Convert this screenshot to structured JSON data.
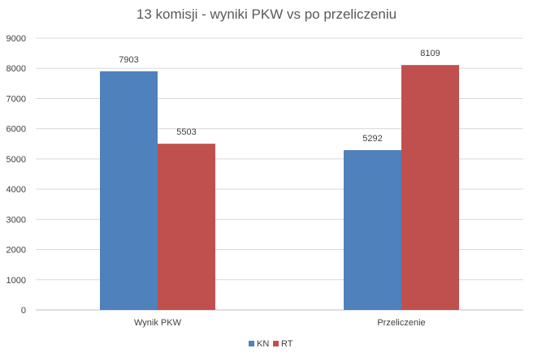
{
  "chart_data": {
    "type": "bar",
    "title": "13 komisji - wyniki PKW vs po przeliczeniu",
    "categories": [
      "Wynik PKW",
      "Przeliczenie"
    ],
    "series": [
      {
        "name": "KN",
        "values": [
          7903,
          5292
        ],
        "color": "#4F81BD"
      },
      {
        "name": "RT",
        "values": [
          5503,
          8109
        ],
        "color": "#C0504D"
      }
    ],
    "ylim": [
      0,
      9000
    ],
    "yticks": [
      0,
      1000,
      2000,
      3000,
      4000,
      5000,
      6000,
      7000,
      8000,
      9000
    ],
    "grid": true,
    "legend": "bottom",
    "data_labels": true
  }
}
